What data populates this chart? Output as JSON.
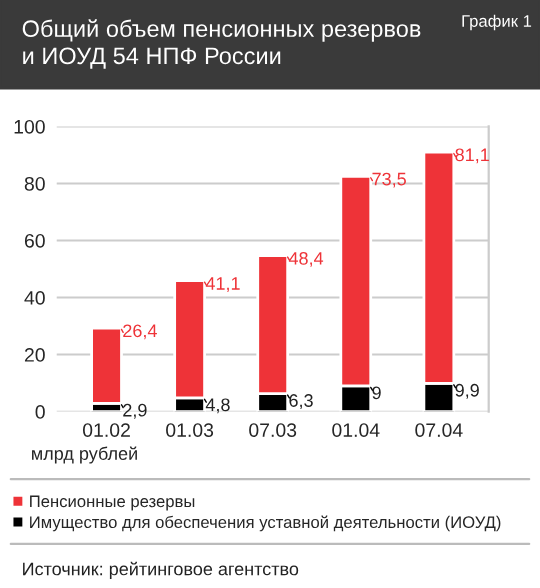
{
  "chart_data": {
    "type": "bar",
    "title": "Общий объем пенсионных резервов\nи ИОУД 54 НПФ России",
    "xlabel": "млрд рублей",
    "categories": [
      "01.02",
      "01.03",
      "07.03",
      "01.04",
      "07.04"
    ],
    "stacked": true,
    "series": [
      {
        "name": "Имущество для обеспечения уставной деятельности (ИОУД)",
        "color": "#000000",
        "values": [
          2.9,
          4.8,
          6.3,
          9,
          9.9
        ],
        "value_labels": [
          "2,9",
          "4,8",
          "6,3",
          "9",
          "9,9"
        ]
      },
      {
        "name": "Пенсионные резервы",
        "color": "#ee3338",
        "values": [
          26.4,
          41.1,
          48.4,
          73.5,
          81.1
        ],
        "value_labels": [
          "26,4",
          "41,1",
          "48,4",
          "73,5",
          "81,1"
        ]
      }
    ],
    "ylim": [
      0,
      100
    ],
    "yticks": [
      0,
      20,
      40,
      60,
      80,
      100
    ],
    "grid": "y",
    "legend": "bottom",
    "annotations": [
      "График 1",
      "Источник: рейтинговое агентство"
    ]
  }
}
